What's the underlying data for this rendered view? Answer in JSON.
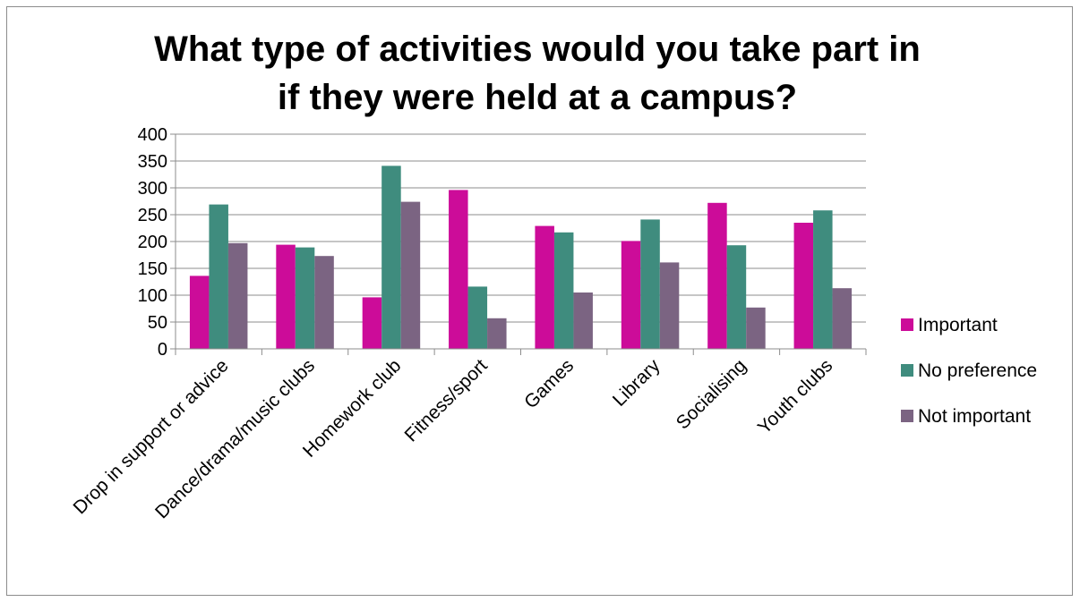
{
  "chart_data": {
    "type": "bar",
    "title": [
      "What type of activities would you take part in",
      "if they were held at a campus?"
    ],
    "categories": [
      "Drop in support or advice",
      "Dance/drama/music clubs",
      "Homework club",
      "Fitness/sport",
      "Games",
      "Library",
      "Socialising",
      "Youth clubs"
    ],
    "series": [
      {
        "name": "Important",
        "color": "#cc0c99",
        "values": [
          136,
          194,
          96,
          296,
          229,
          201,
          272,
          235
        ]
      },
      {
        "name": "No preference",
        "color": "#3f8c7e",
        "values": [
          269,
          189,
          341,
          116,
          217,
          241,
          193,
          258
        ]
      },
      {
        "name": "Not important",
        "color": "#7b6482",
        "values": [
          197,
          173,
          274,
          57,
          105,
          161,
          77,
          113
        ]
      }
    ],
    "ylim": [
      0,
      400
    ],
    "yticks": [
      0,
      50,
      100,
      150,
      200,
      250,
      300,
      350,
      400
    ],
    "grid": true,
    "legend": "right"
  }
}
